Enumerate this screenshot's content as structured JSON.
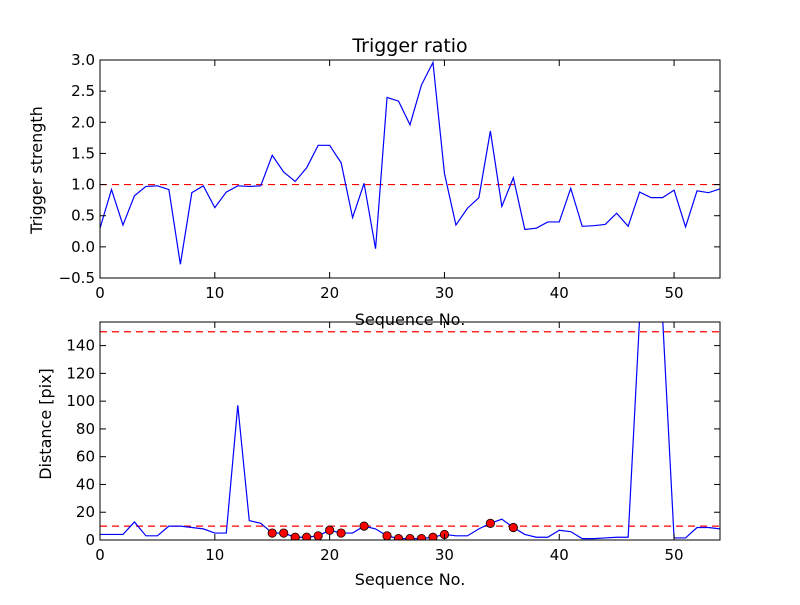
{
  "chart_data": [
    {
      "type": "line",
      "title": "Trigger ratio",
      "xlabel": "Sequence No.",
      "ylabel": "Trigger strength",
      "xlim": [
        0,
        54
      ],
      "ylim": [
        -0.5,
        3.0
      ],
      "xticks": [
        "0",
        "10",
        "20",
        "30",
        "40",
        "50"
      ],
      "yticks": [
        "−0.5",
        "0.0",
        "0.5",
        "1.0",
        "1.5",
        "2.0",
        "2.5",
        "3.0"
      ],
      "grid": false,
      "series": [
        {
          "color": "#0000ff",
          "x": [
            0,
            1,
            2,
            3,
            4,
            5,
            6,
            7,
            8,
            9,
            10,
            11,
            12,
            13,
            14,
            15,
            16,
            17,
            18,
            19,
            20,
            21,
            22,
            23,
            24,
            25,
            26,
            27,
            28,
            29,
            30,
            31,
            32,
            33,
            34,
            35,
            36,
            37,
            38,
            39,
            40,
            41,
            42,
            43,
            44,
            45,
            46,
            47,
            48,
            49,
            50,
            51,
            52,
            53,
            54
          ],
          "y": [
            0.3,
            0.92,
            0.35,
            0.82,
            0.97,
            0.98,
            0.92,
            -0.28,
            0.87,
            0.98,
            0.63,
            0.88,
            0.98,
            0.97,
            0.98,
            1.47,
            1.2,
            1.05,
            1.27,
            1.63,
            1.63,
            1.35,
            0.47,
            1.02,
            -0.03,
            2.4,
            2.34,
            1.96,
            2.6,
            2.96,
            1.18,
            0.35,
            0.62,
            0.79,
            1.86,
            0.65,
            1.11,
            0.28,
            0.3,
            0.4,
            0.4,
            0.94,
            0.33,
            0.34,
            0.36,
            0.54,
            0.33,
            0.88,
            0.79,
            0.79,
            0.91,
            0.32,
            0.9,
            0.87,
            0.93
          ]
        }
      ],
      "thresholds": [
        {
          "y": 1.0,
          "color": "#ff0000",
          "style": "dashed"
        }
      ]
    },
    {
      "type": "line",
      "title": "",
      "xlabel": "Sequence No.",
      "ylabel": "Distance [pix]",
      "xlim": [
        0,
        54
      ],
      "ylim": [
        0,
        157
      ],
      "xticks": [
        "0",
        "10",
        "20",
        "30",
        "40",
        "50"
      ],
      "yticks": [
        "0",
        "20",
        "40",
        "60",
        "80",
        "100",
        "120",
        "140"
      ],
      "grid": false,
      "series": [
        {
          "color": "#0000ff",
          "x": [
            0,
            1,
            2,
            3,
            4,
            5,
            6,
            7,
            8,
            9,
            10,
            11,
            12,
            13,
            14,
            15,
            16,
            17,
            18,
            19,
            20,
            21,
            22,
            23,
            24,
            25,
            26,
            27,
            28,
            29,
            30,
            31,
            32,
            33,
            34,
            35,
            36,
            37,
            38,
            39,
            40,
            41,
            42,
            43,
            44,
            45,
            46,
            47,
            48,
            49,
            50,
            51,
            52,
            53,
            54
          ],
          "y": [
            4,
            4,
            4,
            13,
            3,
            3,
            10,
            10,
            9,
            8,
            5,
            5,
            97,
            14,
            12,
            5,
            5,
            2,
            2,
            3,
            7,
            5,
            5,
            10,
            8,
            3,
            1,
            1,
            1,
            2,
            4,
            3,
            3,
            8,
            12,
            15,
            9,
            4,
            2,
            2,
            7,
            6,
            1,
            1,
            1.5,
            2,
            2,
            160,
            160,
            160,
            1.5,
            1.5,
            9,
            9,
            8
          ]
        }
      ],
      "markers": {
        "color": "#ff0000",
        "x": [
          15,
          16,
          17,
          18,
          19,
          20,
          21,
          23,
          25,
          26,
          27,
          28,
          29,
          30,
          34,
          36
        ],
        "y": [
          5,
          5,
          2,
          2,
          3,
          7,
          5,
          10,
          3,
          1,
          1,
          1,
          2,
          4,
          12,
          9
        ]
      },
      "thresholds": [
        {
          "y": 10,
          "color": "#ff0000",
          "style": "dashed"
        },
        {
          "y": 150,
          "color": "#ff0000",
          "style": "dashed"
        }
      ]
    }
  ]
}
